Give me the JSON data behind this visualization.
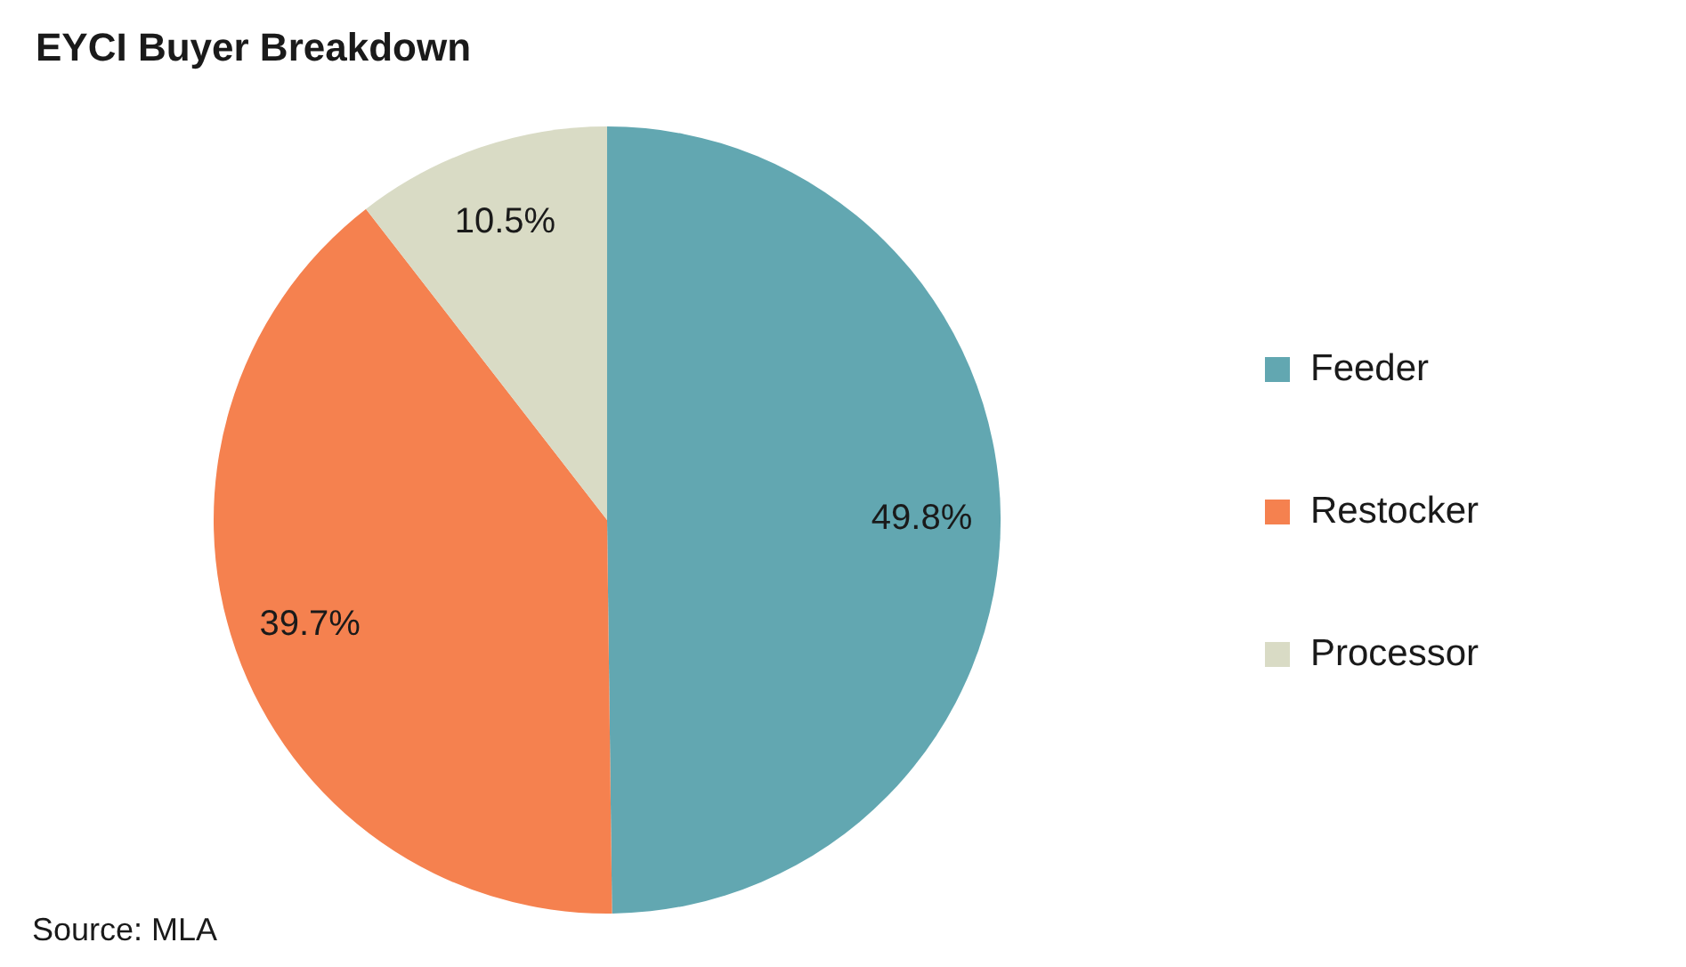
{
  "chart_data": {
    "type": "pie",
    "title": "EYCI Buyer Breakdown",
    "categories": [
      "Feeder",
      "Restocker",
      "Processor"
    ],
    "values": [
      49.8,
      39.7,
      10.5
    ],
    "colors": [
      "#62a7b1",
      "#f5814f",
      "#d9dbc5"
    ],
    "value_labels": [
      "49.8%",
      "39.7%",
      "10.5%"
    ],
    "legend": "right",
    "annotations": [
      "Source: MLA"
    ]
  }
}
